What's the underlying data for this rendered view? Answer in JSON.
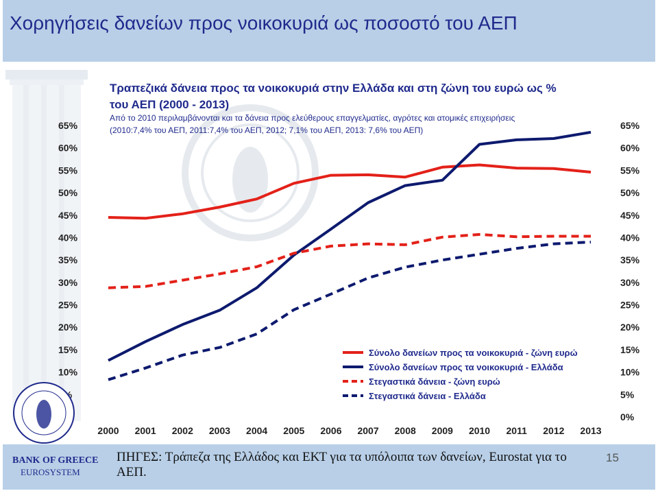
{
  "slide": {
    "title": "Χορηγήσεις δανείων προς νοικοκυριά ως ποσοστό του ΑΕΠ",
    "bank_name": "BANK OF GREECE",
    "eurosystem": "EUROSYSTEM",
    "sources": "ΠΗΓΕΣ: Τράπεζα της Ελλάδος και ΕΚΤ για τα υπόλοιπα των δανείων, Eurostat για το ΑΕΠ.",
    "page_number": "15",
    "logo_icon": "bank-of-greece-seal-icon"
  },
  "chart_data": {
    "type": "line",
    "title_line1": "Τραπεζικά δάνεια προς τα νοικοκυριά στην Ελλάδα και στη ζώνη του ευρώ ως %",
    "title_line2": "του ΑΕΠ (2000 - 2013)",
    "subtitle_line1": "Από το 2010 περιλαμβάνονται και τα δάνεια προς ελεύθερους επαγγελματίες, αγρότες και ατομικές επιχειρήσεις",
    "subtitle_line2": "(2010:7,4% του ΑΕΠ, 2011:7,4% του ΑΕΠ, 2012; 7,1% του ΑΕΠ, 2013: 7,6% του ΑΕΠ)",
    "categories": [
      "2000",
      "2001",
      "2002",
      "2003",
      "2004",
      "2005",
      "2006",
      "2007",
      "2008",
      "2009",
      "2010",
      "2011",
      "2012",
      "2013"
    ],
    "y_ticks": [
      "0%",
      "5%",
      "10%",
      "15%",
      "20%",
      "25%",
      "30%",
      "35%",
      "40%",
      "45%",
      "50%",
      "55%",
      "60%",
      "65%"
    ],
    "ylim": [
      0,
      65
    ],
    "grid": false,
    "legend_position": "bottom-right",
    "series": [
      {
        "name": "Σύνολο δανείων προς τα νοικοκυριά - ζώνη ευρώ",
        "color": "#e32119",
        "dash": "solid",
        "values": [
          44.5,
          44.3,
          45.3,
          46.8,
          48.6,
          52.1,
          53.9,
          54.0,
          53.5,
          55.7,
          56.2,
          55.5,
          55.4,
          54.6
        ]
      },
      {
        "name": "Σύνολο δανείων προς τα νοικοκυριά - Ελλάδα",
        "color": "#0d1a6e",
        "dash": "solid",
        "values": [
          12.6,
          16.8,
          20.6,
          23.8,
          28.8,
          36.1,
          41.9,
          47.8,
          51.6,
          52.8,
          60.8,
          61.8,
          62.1,
          63.5
        ]
      },
      {
        "name": "Στεγαστικά δάνεια - ζώνη ευρώ",
        "color": "#e32119",
        "dash": "dashed",
        "values": [
          28.8,
          29.1,
          30.5,
          31.9,
          33.5,
          36.5,
          38.1,
          38.6,
          38.4,
          40.1,
          40.7,
          40.2,
          40.3,
          40.3
        ]
      },
      {
        "name": "Στεγαστικά δάνεια - Ελλάδα",
        "color": "#0d1a6e",
        "dash": "dashed",
        "values": [
          8.3,
          10.9,
          13.8,
          15.5,
          18.5,
          23.9,
          27.4,
          31.0,
          33.4,
          35.0,
          36.3,
          37.6,
          38.6,
          39.0
        ]
      }
    ]
  }
}
